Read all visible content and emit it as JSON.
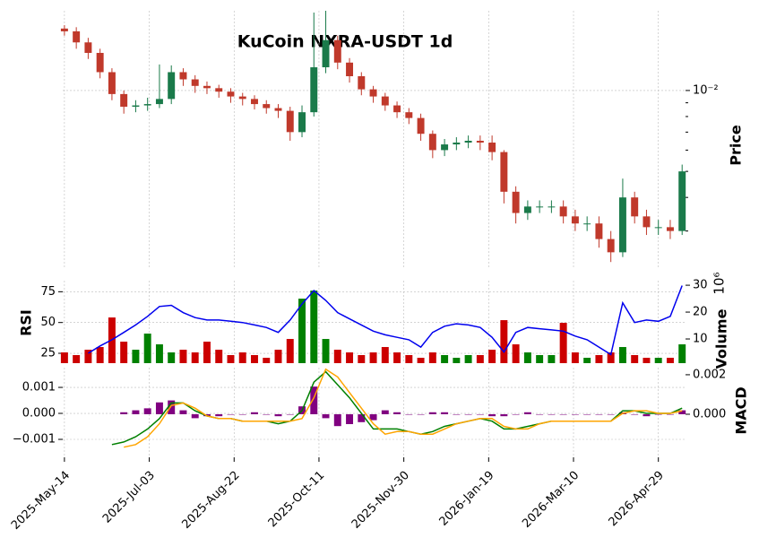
{
  "chart_data": [
    {
      "type": "candlestick",
      "title": "KuCoin NXRA-USDT 1d",
      "ylabel": "Price",
      "log": true,
      "grid": true,
      "up_color": "#1a7a4a",
      "down_color": "#c0392b",
      "xlim": [
        "2025-05-13",
        "2026-05-15"
      ],
      "x": [
        "2025-05-14",
        "2025-05-21",
        "2025-05-28",
        "2025-06-04",
        "2025-06-11",
        "2025-06-18",
        "2025-06-25",
        "2025-07-02",
        "2025-07-09",
        "2025-07-16",
        "2025-07-23",
        "2025-07-30",
        "2025-08-06",
        "2025-08-13",
        "2025-08-20",
        "2025-08-27",
        "2025-09-03",
        "2025-09-10",
        "2025-09-17",
        "2025-09-24",
        "2025-10-01",
        "2025-10-08",
        "2025-10-15",
        "2025-10-22",
        "2025-10-29",
        "2025-11-05",
        "2025-11-12",
        "2025-11-19",
        "2025-11-26",
        "2025-12-03",
        "2025-12-10",
        "2025-12-17",
        "2025-12-24",
        "2025-12-31",
        "2026-01-07",
        "2026-01-14",
        "2026-01-21",
        "2026-01-28",
        "2026-02-04",
        "2026-02-11",
        "2026-02-18",
        "2026-02-25",
        "2026-03-04",
        "2026-03-11",
        "2026-03-18",
        "2026-03-25",
        "2026-04-01",
        "2026-04-08",
        "2026-04-15",
        "2026-04-22",
        "2026-04-29",
        "2026-05-06",
        "2026-05-13"
      ],
      "open": [
        0.017,
        0.0166,
        0.0151,
        0.0138,
        0.0117,
        0.0097,
        0.0087,
        0.0088,
        0.0089,
        0.0093,
        0.0117,
        0.011,
        0.0104,
        0.0102,
        0.0099,
        0.0095,
        0.0093,
        0.0089,
        0.0086,
        0.0084,
        0.007,
        0.0083,
        0.0122,
        0.0154,
        0.0127,
        0.0113,
        0.0101,
        0.0095,
        0.0088,
        0.0083,
        0.0079,
        0.0069,
        0.006,
        0.0063,
        0.0064,
        0.0065,
        0.0064,
        0.0059,
        0.0042,
        0.0035,
        0.0037,
        0.0037,
        0.0037,
        0.0034,
        0.0032,
        0.0032,
        0.0028,
        0.0025,
        0.004,
        0.0034,
        0.0031,
        0.0031,
        0.003
      ],
      "high": [
        0.0175,
        0.0172,
        0.0157,
        0.0143,
        0.0121,
        0.01,
        0.0092,
        0.0094,
        0.0125,
        0.0124,
        0.0121,
        0.0114,
        0.0108,
        0.0105,
        0.0102,
        0.0098,
        0.0096,
        0.0092,
        0.0089,
        0.0087,
        0.0088,
        0.0195,
        0.0198,
        0.016,
        0.0132,
        0.0117,
        0.0104,
        0.0098,
        0.0091,
        0.0086,
        0.0082,
        0.0071,
        0.0066,
        0.0067,
        0.0068,
        0.0068,
        0.0068,
        0.006,
        0.0044,
        0.0039,
        0.0039,
        0.0039,
        0.0039,
        0.0036,
        0.0034,
        0.0034,
        0.003,
        0.0047,
        0.0042,
        0.0036,
        0.0033,
        0.0033,
        0.0053
      ],
      "low": [
        0.016,
        0.0143,
        0.0131,
        0.0111,
        0.0092,
        0.0082,
        0.0083,
        0.0084,
        0.0086,
        0.0089,
        0.0104,
        0.0098,
        0.0097,
        0.0094,
        0.009,
        0.0088,
        0.0085,
        0.0082,
        0.0079,
        0.0065,
        0.0067,
        0.008,
        0.0116,
        0.012,
        0.0107,
        0.0096,
        0.009,
        0.0084,
        0.0079,
        0.0075,
        0.0065,
        0.0056,
        0.0057,
        0.006,
        0.0061,
        0.006,
        0.0055,
        0.0038,
        0.0032,
        0.0033,
        0.0035,
        0.0035,
        0.0032,
        0.003,
        0.003,
        0.0026,
        0.0023,
        0.0024,
        0.0032,
        0.0029,
        0.0029,
        0.0028,
        0.0029
      ],
      "close": [
        0.0166,
        0.0151,
        0.0138,
        0.0117,
        0.0097,
        0.0087,
        0.0088,
        0.0089,
        0.0093,
        0.0117,
        0.011,
        0.0104,
        0.0102,
        0.0099,
        0.0095,
        0.0093,
        0.0089,
        0.0086,
        0.0084,
        0.007,
        0.0083,
        0.0122,
        0.0154,
        0.0127,
        0.0113,
        0.0101,
        0.0095,
        0.0088,
        0.0083,
        0.0079,
        0.0069,
        0.006,
        0.0063,
        0.0064,
        0.0065,
        0.0064,
        0.0059,
        0.0042,
        0.0035,
        0.0037,
        0.0037,
        0.0037,
        0.0034,
        0.0032,
        0.0032,
        0.0028,
        0.0025,
        0.004,
        0.0034,
        0.0031,
        0.0031,
        0.003,
        0.005
      ],
      "ylim": [
        0.0022,
        0.0198
      ],
      "yticks": [
        {
          "value": 0.01,
          "label": "10⁻²"
        }
      ],
      "yminorticks": [
        0.003,
        0.004,
        0.005,
        0.006,
        0.007,
        0.008,
        0.009
      ]
    },
    {
      "type": "line",
      "ylabel": "RSI",
      "y2label": "Volume",
      "y2offset": "10⁶",
      "grid": true,
      "ylim": [
        17,
        84
      ],
      "yticks": [
        25,
        50,
        75
      ],
      "y2lim": [
        1,
        31.7
      ],
      "y2ticks": [
        10,
        20,
        30
      ],
      "series": [
        {
          "color": "#0000ee",
          "values": [
            null,
            null,
            25,
            31,
            36,
            42,
            48,
            55,
            63,
            64,
            58,
            54,
            52,
            52,
            51,
            50,
            48,
            46,
            42,
            52,
            65,
            76,
            68,
            58,
            53,
            48,
            43,
            40,
            38,
            36,
            30,
            42,
            47,
            49,
            48,
            46,
            38,
            26,
            42,
            46,
            45,
            44,
            43,
            39,
            36,
            30,
            24,
            66,
            50,
            52,
            51,
            55,
            80
          ]
        },
        {
          "axis": "y2",
          "style": "bar",
          "up_color": "#008000",
          "down_color": "#cc0000",
          "values": [
            5,
            4,
            6,
            7,
            18,
            9,
            6,
            12,
            8,
            5,
            6,
            5,
            9,
            6,
            4,
            5,
            4,
            3,
            6,
            10,
            25,
            28,
            10,
            6,
            5,
            4,
            5,
            7,
            5,
            4,
            3,
            5,
            4,
            3,
            4,
            4,
            6,
            17,
            8,
            5,
            4,
            4,
            16,
            5,
            3,
            4,
            5,
            7,
            4,
            3,
            3,
            3,
            8
          ]
        }
      ]
    },
    {
      "type": "line",
      "ylabel": "MACD",
      "grid": true,
      "ylim": [
        -0.00169,
        0.00176
      ],
      "yticks": [
        {
          "value": -0.001,
          "label": "−0.001"
        },
        {
          "value": 0,
          "label": "0.000"
        },
        {
          "value": 0.001,
          "label": "0.001"
        }
      ],
      "y2lim": [
        -0.00218,
        0.00236
      ],
      "y2ticks": [
        {
          "value": 0,
          "label": "0.000"
        },
        {
          "value": 0.002,
          "label": "0.002"
        }
      ],
      "xticks": [
        {
          "value": "2025-05-14",
          "label": "2025-May-14"
        },
        {
          "value": "2025-07-03",
          "label": "2025-Jul-03"
        },
        {
          "value": "2025-08-22",
          "label": "2025-Aug-22"
        },
        {
          "value": "2025-10-11",
          "label": "2025-Oct-11"
        },
        {
          "value": "2025-11-30",
          "label": "2025-Nov-30"
        },
        {
          "value": "2026-01-19",
          "label": "2026-Jan-19"
        },
        {
          "value": "2026-03-10",
          "label": "2026-Mar-10"
        },
        {
          "value": "2026-04-29",
          "label": "2026-Apr-29"
        }
      ],
      "series": [
        {
          "axis": "y2",
          "style": "bar",
          "color": "#800080",
          "values": [
            null,
            null,
            null,
            null,
            null,
            0.0001,
            0.0002,
            0.0003,
            0.0006,
            0.0007,
            0.0002,
            -0.0002,
            -0.0001,
            -0.0001,
            0.0,
            0.0,
            0.0001,
            0.0,
            -0.0001,
            0.0,
            0.0004,
            0.0014,
            -0.0002,
            -0.0006,
            -0.0005,
            -0.0004,
            -0.0003,
            0.0002,
            0.0001,
            0.0,
            0.0,
            0.0001,
            0.0001,
            0.0,
            0.0,
            0.0,
            -0.0001,
            -0.0001,
            0.0,
            0.0001,
            0.0,
            0.0,
            0.0,
            0.0,
            0.0,
            0.0,
            0.0,
            0.0001,
            0.0,
            -0.0001,
            0.0,
            0.0,
            0.0002
          ]
        },
        {
          "color": "#008000",
          "values": [
            null,
            null,
            null,
            null,
            -0.0012,
            -0.0011,
            -0.0009,
            -0.0006,
            -0.0002,
            0.0004,
            0.0004,
            0.0001,
            -0.0001,
            -0.0002,
            -0.0002,
            -0.0003,
            -0.0003,
            -0.0003,
            -0.0004,
            -0.0003,
            0.0001,
            0.0012,
            0.0016,
            0.0011,
            0.0006,
            0.0,
            -0.0006,
            -0.0006,
            -0.0006,
            -0.0007,
            -0.0008,
            -0.0007,
            -0.0005,
            -0.0004,
            -0.0003,
            -0.0002,
            -0.0003,
            -0.0006,
            -0.0006,
            -0.0005,
            -0.0004,
            -0.0003,
            -0.0003,
            -0.0003,
            -0.0003,
            -0.0003,
            -0.0003,
            0.0001,
            0.0001,
            0.0,
            0.0,
            0.0,
            0.0002
          ]
        },
        {
          "color": "#ffa500",
          "values": [
            null,
            null,
            null,
            null,
            null,
            -0.0013,
            -0.0012,
            -0.0009,
            -0.0004,
            0.0003,
            0.0004,
            0.0002,
            -0.0001,
            -0.0002,
            -0.0002,
            -0.0003,
            -0.0003,
            -0.0003,
            -0.0003,
            -0.0003,
            -0.0002,
            0.0006,
            0.0017,
            0.0014,
            0.0008,
            0.0002,
            -0.0004,
            -0.0008,
            -0.0007,
            -0.0007,
            -0.0008,
            -0.0008,
            -0.0006,
            -0.0004,
            -0.0003,
            -0.0002,
            -0.0002,
            -0.0005,
            -0.0006,
            -0.0006,
            -0.0004,
            -0.0003,
            -0.0003,
            -0.0003,
            -0.0003,
            -0.0003,
            -0.0003,
            0.0,
            0.0001,
            0.0001,
            0.0,
            0.0,
            0.0001
          ]
        }
      ]
    }
  ]
}
